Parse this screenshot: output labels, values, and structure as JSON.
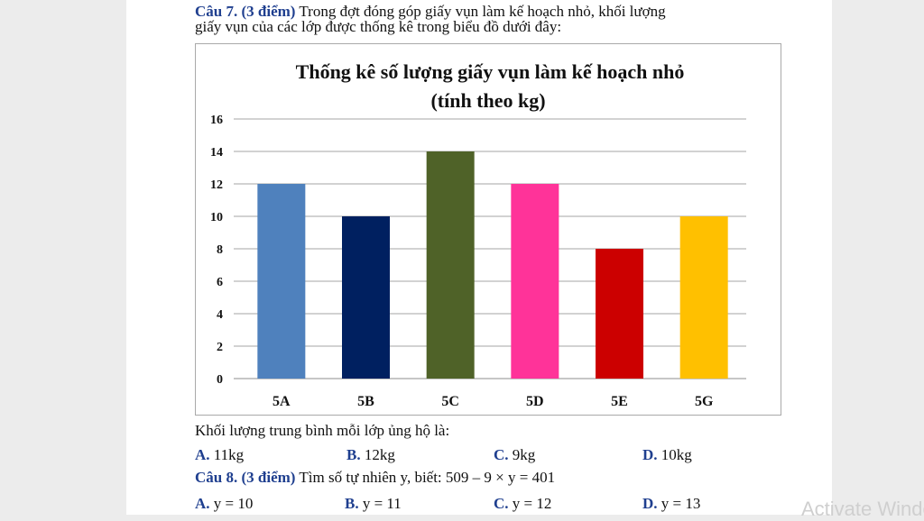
{
  "question7": {
    "label": "Câu  7. (3 điểm)",
    "text_line1": " Trong  đợt  đóng  góp  giấy  vụn  làm  kế  hoạch  nhỏ,  khối  lượng",
    "text_line2": "giấy  vụn  của  các  lớp  được  thống  kê  trong  biểu  đồ  dưới  đây:",
    "prompt": "Khối  lượng  trung  bình  mỗi  lớp  ủng  hộ  là:",
    "options": [
      {
        "letter": "A.",
        "text": " 11kg"
      },
      {
        "letter": "B.",
        "text": " 12kg"
      },
      {
        "letter": "C.",
        "text": " 9kg"
      },
      {
        "letter": "D.",
        "text": " 10kg"
      }
    ]
  },
  "question8": {
    "label": "Câu 8. (3 điểm)",
    "text": " Tìm số tự nhiên y, biết: 509 – 9 × y = 401",
    "options": [
      {
        "letter": "A.",
        "text": " y = 10"
      },
      {
        "letter": "B.",
        "text": " y = 11"
      },
      {
        "letter": "C.",
        "text": " y = 12"
      },
      {
        "letter": "D.",
        "text": " y = 13"
      }
    ]
  },
  "watermark": "Activate Windo",
  "chart_data": {
    "type": "bar",
    "title": "Thống kê số lượng giấy vụn làm kế hoạch nhỏ",
    "subtitle": "(tính theo kg)",
    "categories": [
      "5A",
      "5B",
      "5C",
      "5D",
      "5E",
      "5G"
    ],
    "values": [
      12,
      10,
      14,
      12,
      8,
      10
    ],
    "colors": [
      "#4f81bd",
      "#002060",
      "#4f6228",
      "#ff3399",
      "#cc0000",
      "#ffc000"
    ],
    "ylim": [
      0,
      16
    ],
    "yticks": [
      "0",
      "2",
      "4",
      "6",
      "8",
      "10",
      "12",
      "14",
      "16"
    ],
    "grid": true,
    "xlabel": "",
    "ylabel": ""
  }
}
